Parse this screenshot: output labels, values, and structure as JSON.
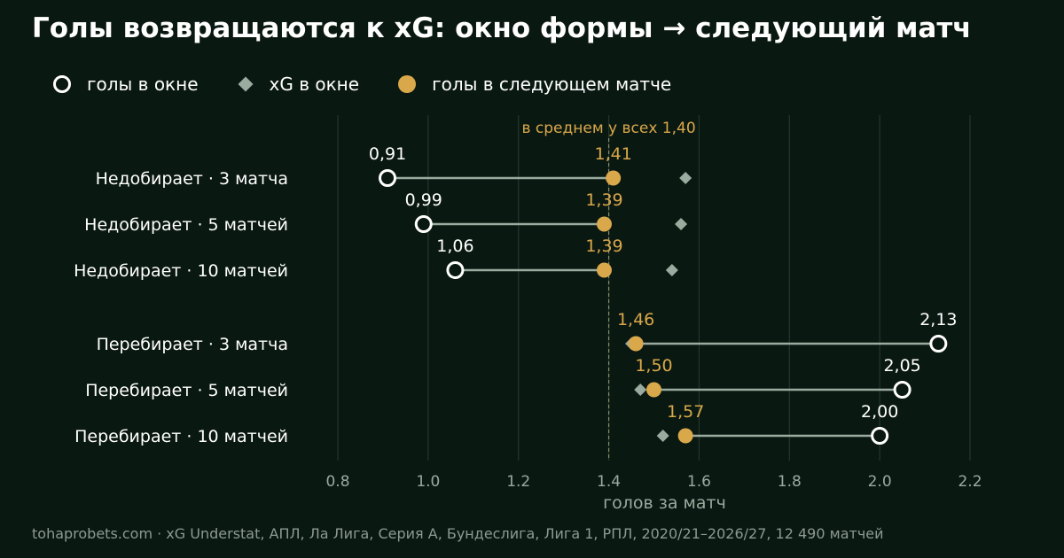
{
  "title": "Голы возвращаются к xG: окно формы → следующий матч",
  "legend": {
    "window_goals": "голы в окне",
    "window_xg": "xG в окне",
    "next_goals": "голы в следующем матче"
  },
  "footer": "tohaprobets.com · xG Understat, АПЛ, Ла Лига, Серия А, Бундеслига, Лига 1, РПЛ, 2020/21–2026/27, 12 490 матчей",
  "colors": {
    "background": "#0a1812",
    "window_goals": "#ffffff",
    "window_xg": "#9aab9f",
    "next_goals": "#d9a84a",
    "connector": "#9aab9f",
    "grid": "#24372c"
  },
  "chart_data": {
    "type": "dumbbell",
    "xlabel": "голов за матч",
    "xlim": [
      0.8,
      2.2
    ],
    "xticks": [
      0.8,
      1.0,
      1.2,
      1.4,
      1.6,
      1.8,
      2.0,
      2.2
    ],
    "xtick_labels": [
      "0.8",
      "1.0",
      "1.2",
      "1.4",
      "1.6",
      "1.8",
      "2.0",
      "2.2"
    ],
    "grid": "vertical",
    "reference_line": {
      "value": 1.4,
      "label": "в среднем у всех 1,40"
    },
    "rows": [
      {
        "label": "Недобирает · 3 матча",
        "window_goals": 0.91,
        "window_goals_label": "0,91",
        "window_xg": 1.57,
        "next_goals": 1.41,
        "next_goals_label": "1,41"
      },
      {
        "label": "Недобирает · 5 матчей",
        "window_goals": 0.99,
        "window_goals_label": "0,99",
        "window_xg": 1.56,
        "next_goals": 1.39,
        "next_goals_label": "1,39"
      },
      {
        "label": "Недобирает · 10 матчей",
        "window_goals": 1.06,
        "window_goals_label": "1,06",
        "window_xg": 1.54,
        "next_goals": 1.39,
        "next_goals_label": "1,39"
      },
      {
        "label": "Перебирает · 3 матча",
        "window_goals": 2.13,
        "window_goals_label": "2,13",
        "window_xg": 1.45,
        "next_goals": 1.46,
        "next_goals_label": "1,46"
      },
      {
        "label": "Перебирает · 5 матчей",
        "window_goals": 2.05,
        "window_goals_label": "2,05",
        "window_xg": 1.47,
        "next_goals": 1.5,
        "next_goals_label": "1,50"
      },
      {
        "label": "Перебирает · 10 матчей",
        "window_goals": 2.0,
        "window_goals_label": "2,00",
        "window_xg": 1.52,
        "next_goals": 1.57,
        "next_goals_label": "1,57"
      }
    ]
  }
}
